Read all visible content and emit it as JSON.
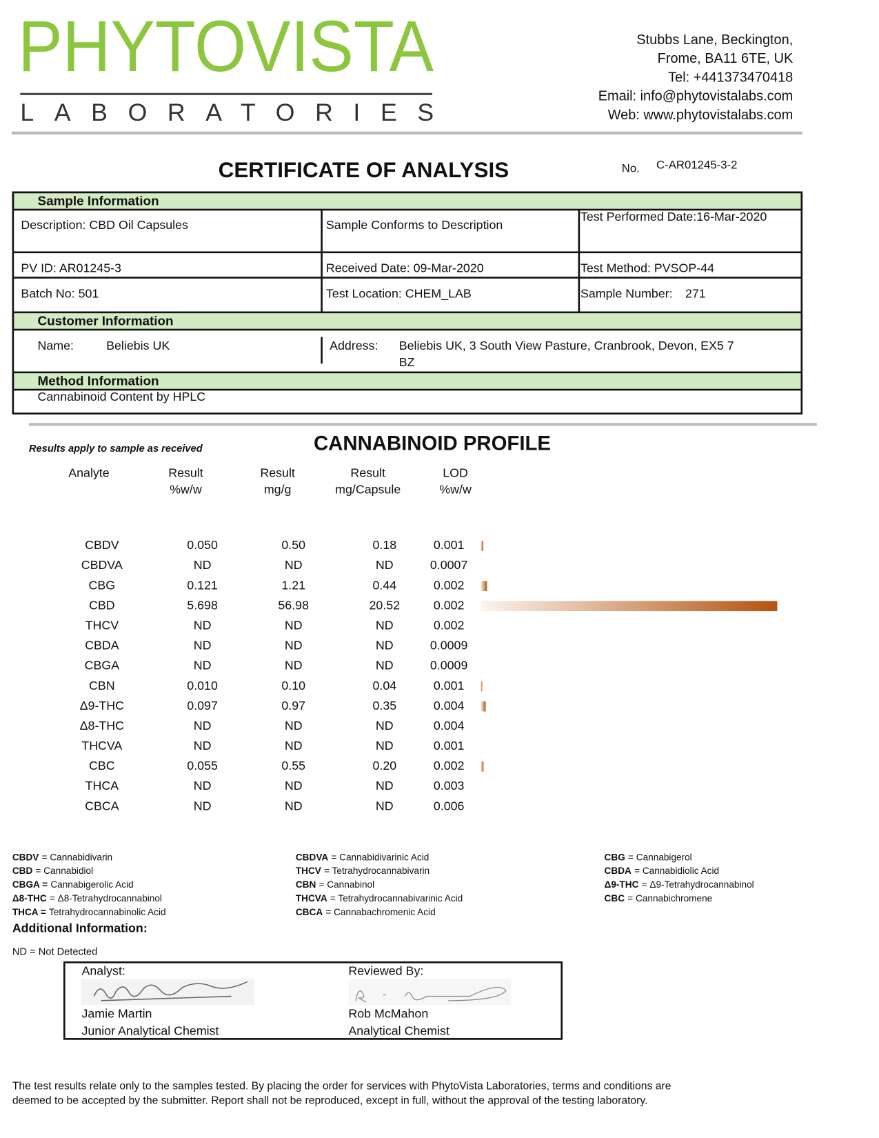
{
  "header": {
    "logo_main": "PHYTOVISTA",
    "logo_sub": "LABORATORIES",
    "address_lines": [
      "Stubbs Lane, Beckington,",
      "Frome, BA11 6TE, UK",
      "Tel: +441373470418",
      "Email: info@phytovistalabs.com",
      "Web: www.phytovistalabs.com"
    ]
  },
  "title": "CERTIFICATE OF ANALYSIS",
  "cert_no_label": "No.",
  "cert_no": "C-AR01245-3-2",
  "sample_information": {
    "heading": "Sample Information",
    "description": "Description: CBD Oil Capsules",
    "conforms": "Sample Conforms to Description",
    "test_date": "Test Performed Date:16-Mar-2020",
    "pv_id": "PV ID: AR01245-3",
    "received": "Received Date: 09-Mar-2020",
    "test_method": "Test Method: PVSOP-44",
    "batch": "Batch No: 501",
    "location": "Test Location: CHEM_LAB",
    "sample_number_label": "Sample Number:",
    "sample_number": "271"
  },
  "customer_information": {
    "heading": "Customer Information",
    "name_label": "Name:",
    "name": "Beliebis UK",
    "address_label": "Address:",
    "address_lines": [
      "Beliebis UK, 3 South View Pasture, Cranbrook, Devon, EX5 7",
      "BZ"
    ]
  },
  "method_information": {
    "heading": "Method Information",
    "text": "Cannabinoid Content by HPLC"
  },
  "profile": {
    "note": "Results apply to sample as received",
    "title": "CANNABINOID PROFILE",
    "columns": [
      [
        "Analyte"
      ],
      [
        "Result",
        "%w/w"
      ],
      [
        "Result",
        "mg/g"
      ],
      [
        "Result",
        "mg/Capsule"
      ],
      [
        "LOD",
        "%w/w"
      ]
    ],
    "rows": [
      [
        "CBDV",
        "0.050",
        "0.50",
        "0.18",
        "0.001"
      ],
      [
        "CBDVA",
        "ND",
        "ND",
        "ND",
        "0.0007"
      ],
      [
        "CBG",
        "0.121",
        "1.21",
        "0.44",
        "0.002"
      ],
      [
        "CBD",
        "5.698",
        "56.98",
        "20.52",
        "0.002"
      ],
      [
        "THCV",
        "ND",
        "ND",
        "ND",
        "0.002"
      ],
      [
        "CBDA",
        "ND",
        "ND",
        "ND",
        "0.0009"
      ],
      [
        "CBGA",
        "ND",
        "ND",
        "ND",
        "0.0009"
      ],
      [
        "CBN",
        "0.010",
        "0.10",
        "0.04",
        "0.001"
      ],
      [
        "Δ9-THC",
        "0.097",
        "0.97",
        "0.35",
        "0.004"
      ],
      [
        "Δ8-THC",
        "ND",
        "ND",
        "ND",
        "0.004"
      ],
      [
        "THCVA",
        "ND",
        "ND",
        "ND",
        "0.001"
      ],
      [
        "CBC",
        "0.055",
        "0.55",
        "0.20",
        "0.002"
      ],
      [
        "THCA",
        "ND",
        "ND",
        "ND",
        "0.003"
      ],
      [
        "CBCA",
        "ND",
        "ND",
        "ND",
        "0.006"
      ]
    ]
  },
  "glossary": [
    [
      {
        "abbr": "CBDV",
        "def": "= Cannabidivarin"
      },
      {
        "abbr": "CBD",
        "def": "= Cannabidiol"
      },
      {
        "abbr": "CBGA =",
        "def": "Cannabigerolic Acid"
      },
      {
        "abbr": "Δ8-THC",
        "def": "= Δ8-Tetrahydrocannabinol"
      },
      {
        "abbr": "THCA =",
        "def": "Tetrahydrocannabinolic Acid"
      }
    ],
    [
      {
        "abbr": "CBDVA",
        "def": "= Cannabidivarinic Acid"
      },
      {
        "abbr": "THCV",
        "def": "= Tetrahydrocannabivarin"
      },
      {
        "abbr": "CBN",
        "def": "= Cannabinol"
      },
      {
        "abbr": "THCVA",
        "def": "= Tetrahydrocannabivarinic Acid"
      },
      {
        "abbr": "CBCA",
        "def": "= Cannabachromenic Acid"
      }
    ],
    [
      {
        "abbr": "CBG",
        "def": "= Cannabigerol"
      },
      {
        "abbr": "CBDA",
        "def": "= Cannabidiolic Acid"
      },
      {
        "abbr": "Δ9-THC",
        "def": "= Δ9-Tetrahydrocannabinol"
      },
      {
        "abbr": "CBC",
        "def": "= Cannabichromene"
      }
    ]
  ],
  "additional_information": {
    "heading": "Additional Information:",
    "note": "ND = Not Detected"
  },
  "signatures": {
    "analyst_label": "Analyst:",
    "analyst_name": "Jamie Martin",
    "analyst_title": "Junior Analytical Chemist",
    "reviewer_label": "Reviewed By:",
    "reviewer_name": "Rob McMahon",
    "reviewer_title": "Analytical Chemist"
  },
  "footer": [
    "The test results relate only to the samples tested.  By placing the order for services with PhytoVista Laboratories, terms and conditions are",
    "deemed to be accepted by the submitter. Report shall not be reproduced, except in full, without the approval of the testing laboratory."
  ]
}
